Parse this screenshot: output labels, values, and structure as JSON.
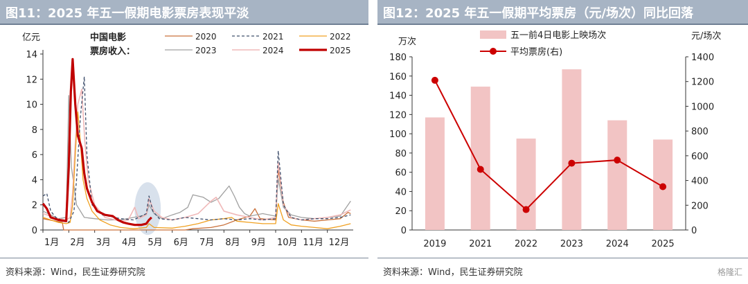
{
  "charts": [
    {
      "title": "图11：2025 年五一假期电影票房表现平淡",
      "source": "资料来源：Wind，民生证券研究院",
      "ylabel": "亿元",
      "legend_title_1": "中国电影",
      "legend_title_2": "票房收入："
    },
    {
      "title": "图12：2025 年五一假期平均票房（元/场次）同比回落",
      "source": "资料来源：Wind，民生证券研究院",
      "ylabel_left": "万次",
      "ylabel_right": "元/场次"
    }
  ],
  "watermark": "格隆汇",
  "colors": {
    "title_bar": "#a7b4c4",
    "s2020": "#c9703a",
    "s2021": "#3d4d6a",
    "s2022": "#f0a020",
    "s2023": "#a0a0a0",
    "s2024": "#f0b8b8",
    "s2025": "#c00000",
    "bar": "#f2c4c4",
    "line": "#cc0000",
    "highlight": "#b8c8dc"
  },
  "chart_data": [
    {
      "type": "line",
      "ylim": [
        0,
        14
      ],
      "yticks": [
        "0",
        "2",
        "4",
        "6",
        "8",
        "10",
        "12",
        "14"
      ],
      "xticks": [
        "1月",
        "2月",
        "3月",
        "4月",
        "5月",
        "6月",
        "7月",
        "8月",
        "9月",
        "10月",
        "11月",
        "12月"
      ],
      "highlight": {
        "x": 4.05,
        "y": 1.7
      },
      "series": [
        {
          "name": "2020",
          "dash": "",
          "width": 1.3,
          "points": [
            [
              0,
              0.9
            ],
            [
              0.5,
              0.7
            ],
            [
              0.75,
              0.6
            ],
            [
              0.8,
              0
            ],
            [
              5.5,
              0
            ],
            [
              5.8,
              0.1
            ],
            [
              6.5,
              0.2
            ],
            [
              7,
              0.4
            ],
            [
              7.5,
              0.8
            ],
            [
              8,
              1.1
            ],
            [
              8.2,
              1.7
            ],
            [
              8.4,
              0.9
            ],
            [
              9,
              0.8
            ],
            [
              9.1,
              4.8
            ],
            [
              9.3,
              2.2
            ],
            [
              9.5,
              1
            ],
            [
              10,
              0.8
            ],
            [
              10.5,
              0.7
            ],
            [
              11,
              0.8
            ],
            [
              11.5,
              0.9
            ],
            [
              11.8,
              1.4
            ],
            [
              11.9,
              1.3
            ]
          ]
        },
        {
          "name": "2021",
          "dash": "4,3",
          "width": 1.3,
          "points": [
            [
              0,
              2.7
            ],
            [
              0.15,
              2.9
            ],
            [
              0.3,
              1.5
            ],
            [
              0.5,
              1
            ],
            [
              0.8,
              0.7
            ],
            [
              1,
              0.6
            ],
            [
              1.2,
              1.5
            ],
            [
              1.3,
              4
            ],
            [
              1.45,
              9
            ],
            [
              1.6,
              12.2
            ],
            [
              1.7,
              6
            ],
            [
              1.9,
              2
            ],
            [
              2.3,
              1.2
            ],
            [
              3,
              0.9
            ],
            [
              3.5,
              0.8
            ],
            [
              4,
              1.3
            ],
            [
              4.1,
              2.7
            ],
            [
              4.25,
              1.5
            ],
            [
              4.5,
              0.9
            ],
            [
              5,
              0.8
            ],
            [
              5.5,
              1
            ],
            [
              6,
              0.9
            ],
            [
              6.5,
              0.8
            ],
            [
              7,
              0.9
            ],
            [
              7.5,
              0.8
            ],
            [
              8,
              0.9
            ],
            [
              8.5,
              0.8
            ],
            [
              9,
              0.9
            ],
            [
              9.1,
              6.3
            ],
            [
              9.3,
              2
            ],
            [
              9.6,
              1
            ],
            [
              10,
              0.8
            ],
            [
              10.5,
              0.9
            ],
            [
              11,
              0.9
            ],
            [
              11.5,
              1
            ],
            [
              11.9,
              1.2
            ]
          ]
        },
        {
          "name": "2022",
          "dash": "",
          "width": 1.3,
          "points": [
            [
              0,
              1
            ],
            [
              0.3,
              0.8
            ],
            [
              0.6,
              0.6
            ],
            [
              0.9,
              0.5
            ],
            [
              1.05,
              0.6
            ],
            [
              1.15,
              2
            ],
            [
              1.25,
              6
            ],
            [
              1.35,
              9.4
            ],
            [
              1.45,
              7
            ],
            [
              1.55,
              4
            ],
            [
              1.7,
              2.5
            ],
            [
              1.9,
              1.5
            ],
            [
              2.2,
              0.8
            ],
            [
              2.6,
              0.4
            ],
            [
              3,
              0.2
            ],
            [
              3.5,
              0.1
            ],
            [
              4,
              0.2
            ],
            [
              4.1,
              0.5
            ],
            [
              4.3,
              0.2
            ],
            [
              5,
              0.15
            ],
            [
              5.5,
              0.3
            ],
            [
              6,
              0.5
            ],
            [
              6.5,
              0.8
            ],
            [
              7,
              0.9
            ],
            [
              7.3,
              1
            ],
            [
              7.5,
              0.7
            ],
            [
              8,
              0.6
            ],
            [
              8.5,
              0.5
            ],
            [
              9,
              0.5
            ],
            [
              9.1,
              2.1
            ],
            [
              9.3,
              0.8
            ],
            [
              9.6,
              0.4
            ],
            [
              10,
              0.3
            ],
            [
              10.5,
              0.2
            ],
            [
              11,
              0.1
            ],
            [
              11.5,
              0.3
            ],
            [
              11.9,
              0.5
            ]
          ]
        },
        {
          "name": "2023",
          "dash": "",
          "width": 1.3,
          "points": [
            [
              0,
              1.5
            ],
            [
              0.3,
              1.2
            ],
            [
              0.6,
              0.9
            ],
            [
              0.9,
              1
            ],
            [
              1,
              10.7
            ],
            [
              1.1,
              5
            ],
            [
              1.3,
              2
            ],
            [
              1.6,
              1
            ],
            [
              2,
              0.9
            ],
            [
              2.5,
              0.8
            ],
            [
              3,
              0.8
            ],
            [
              3.5,
              1
            ],
            [
              4,
              1.2
            ],
            [
              4.1,
              2
            ],
            [
              4.3,
              1.3
            ],
            [
              4.6,
              0.9
            ],
            [
              5,
              1.2
            ],
            [
              5.3,
              1.4
            ],
            [
              5.6,
              1.8
            ],
            [
              5.8,
              2.8
            ],
            [
              6.2,
              2.6
            ],
            [
              6.5,
              2.2
            ],
            [
              6.8,
              2.5
            ],
            [
              7,
              3
            ],
            [
              7.2,
              3.5
            ],
            [
              7.4,
              2.7
            ],
            [
              7.6,
              1.8
            ],
            [
              7.8,
              1.3
            ],
            [
              8,
              1.1
            ],
            [
              8.5,
              1.3
            ],
            [
              9,
              1.1
            ],
            [
              9.1,
              4.1
            ],
            [
              9.3,
              1.8
            ],
            [
              9.6,
              1.2
            ],
            [
              10,
              1
            ],
            [
              10.5,
              0.9
            ],
            [
              11,
              1
            ],
            [
              11.5,
              1.1
            ],
            [
              11.9,
              2.3
            ]
          ]
        },
        {
          "name": "2024",
          "dash": "",
          "width": 1.6,
          "points": [
            [
              0,
              1.3
            ],
            [
              0.3,
              1.1
            ],
            [
              0.6,
              0.9
            ],
            [
              0.9,
              0.8
            ],
            [
              1.05,
              1
            ],
            [
              1.15,
              3
            ],
            [
              1.25,
              7
            ],
            [
              1.35,
              10
            ],
            [
              1.5,
              11.2
            ],
            [
              1.62,
              7
            ],
            [
              1.75,
              4
            ],
            [
              2,
              2
            ],
            [
              2.4,
              1
            ],
            [
              3,
              0.7
            ],
            [
              3.3,
              0.8
            ],
            [
              3.55,
              1.8
            ],
            [
              3.7,
              0.9
            ],
            [
              4,
              1.2
            ],
            [
              4.1,
              2.5
            ],
            [
              4.3,
              1.5
            ],
            [
              4.6,
              1
            ],
            [
              5,
              0.8
            ],
            [
              5.5,
              1
            ],
            [
              6,
              1.3
            ],
            [
              6.5,
              2.3
            ],
            [
              6.7,
              2.6
            ],
            [
              7,
              1.5
            ],
            [
              7.5,
              1.2
            ],
            [
              8,
              1
            ],
            [
              8.5,
              0.8
            ],
            [
              9,
              1
            ],
            [
              9.1,
              5.4
            ],
            [
              9.3,
              2
            ],
            [
              9.6,
              1
            ],
            [
              10,
              0.8
            ],
            [
              10.5,
              0.9
            ],
            [
              11,
              1
            ],
            [
              11.5,
              1.2
            ],
            [
              11.9,
              1.6
            ]
          ]
        },
        {
          "name": "2025",
          "dash": "",
          "width": 3.2,
          "points": [
            [
              0,
              2.1
            ],
            [
              0.15,
              1.7
            ],
            [
              0.3,
              1
            ],
            [
              0.6,
              0.8
            ],
            [
              0.9,
              0.7
            ],
            [
              1.0,
              5
            ],
            [
              1.08,
              11
            ],
            [
              1.15,
              13.6
            ],
            [
              1.25,
              10
            ],
            [
              1.35,
              7.5
            ],
            [
              1.5,
              6.5
            ],
            [
              1.6,
              4.5
            ],
            [
              1.7,
              3.3
            ],
            [
              1.9,
              2.2
            ],
            [
              2.1,
              1.5
            ],
            [
              2.4,
              1.2
            ],
            [
              2.7,
              1.1
            ],
            [
              2.9,
              0.8
            ],
            [
              3.1,
              0.6
            ],
            [
              3.3,
              0.5
            ],
            [
              3.55,
              0.4
            ],
            [
              3.8,
              0.4
            ],
            [
              4.0,
              0.5
            ],
            [
              4.1,
              0.8
            ],
            [
              4.2,
              1
            ]
          ]
        }
      ]
    },
    {
      "type": "bar+line",
      "categories": [
        "2019",
        "2021",
        "2022",
        "2023",
        "2024",
        "2025"
      ],
      "y_left_lim": [
        0,
        180
      ],
      "y_right_lim": [
        0,
        1400
      ],
      "yticks_left": [
        "0",
        "20",
        "40",
        "60",
        "80",
        "100",
        "120",
        "140",
        "160",
        "180"
      ],
      "yticks_right": [
        "0",
        "200",
        "400",
        "600",
        "800",
        "1000",
        "1200",
        "1400"
      ],
      "series": [
        {
          "name": "五一前4日电影上映场次",
          "type": "bar",
          "axis": "left",
          "values": [
            117,
            149,
            95,
            167,
            114,
            94
          ]
        },
        {
          "name": "平均票房(右)",
          "type": "line",
          "axis": "right",
          "values": [
            1210,
            490,
            165,
            540,
            565,
            350
          ]
        }
      ]
    }
  ]
}
